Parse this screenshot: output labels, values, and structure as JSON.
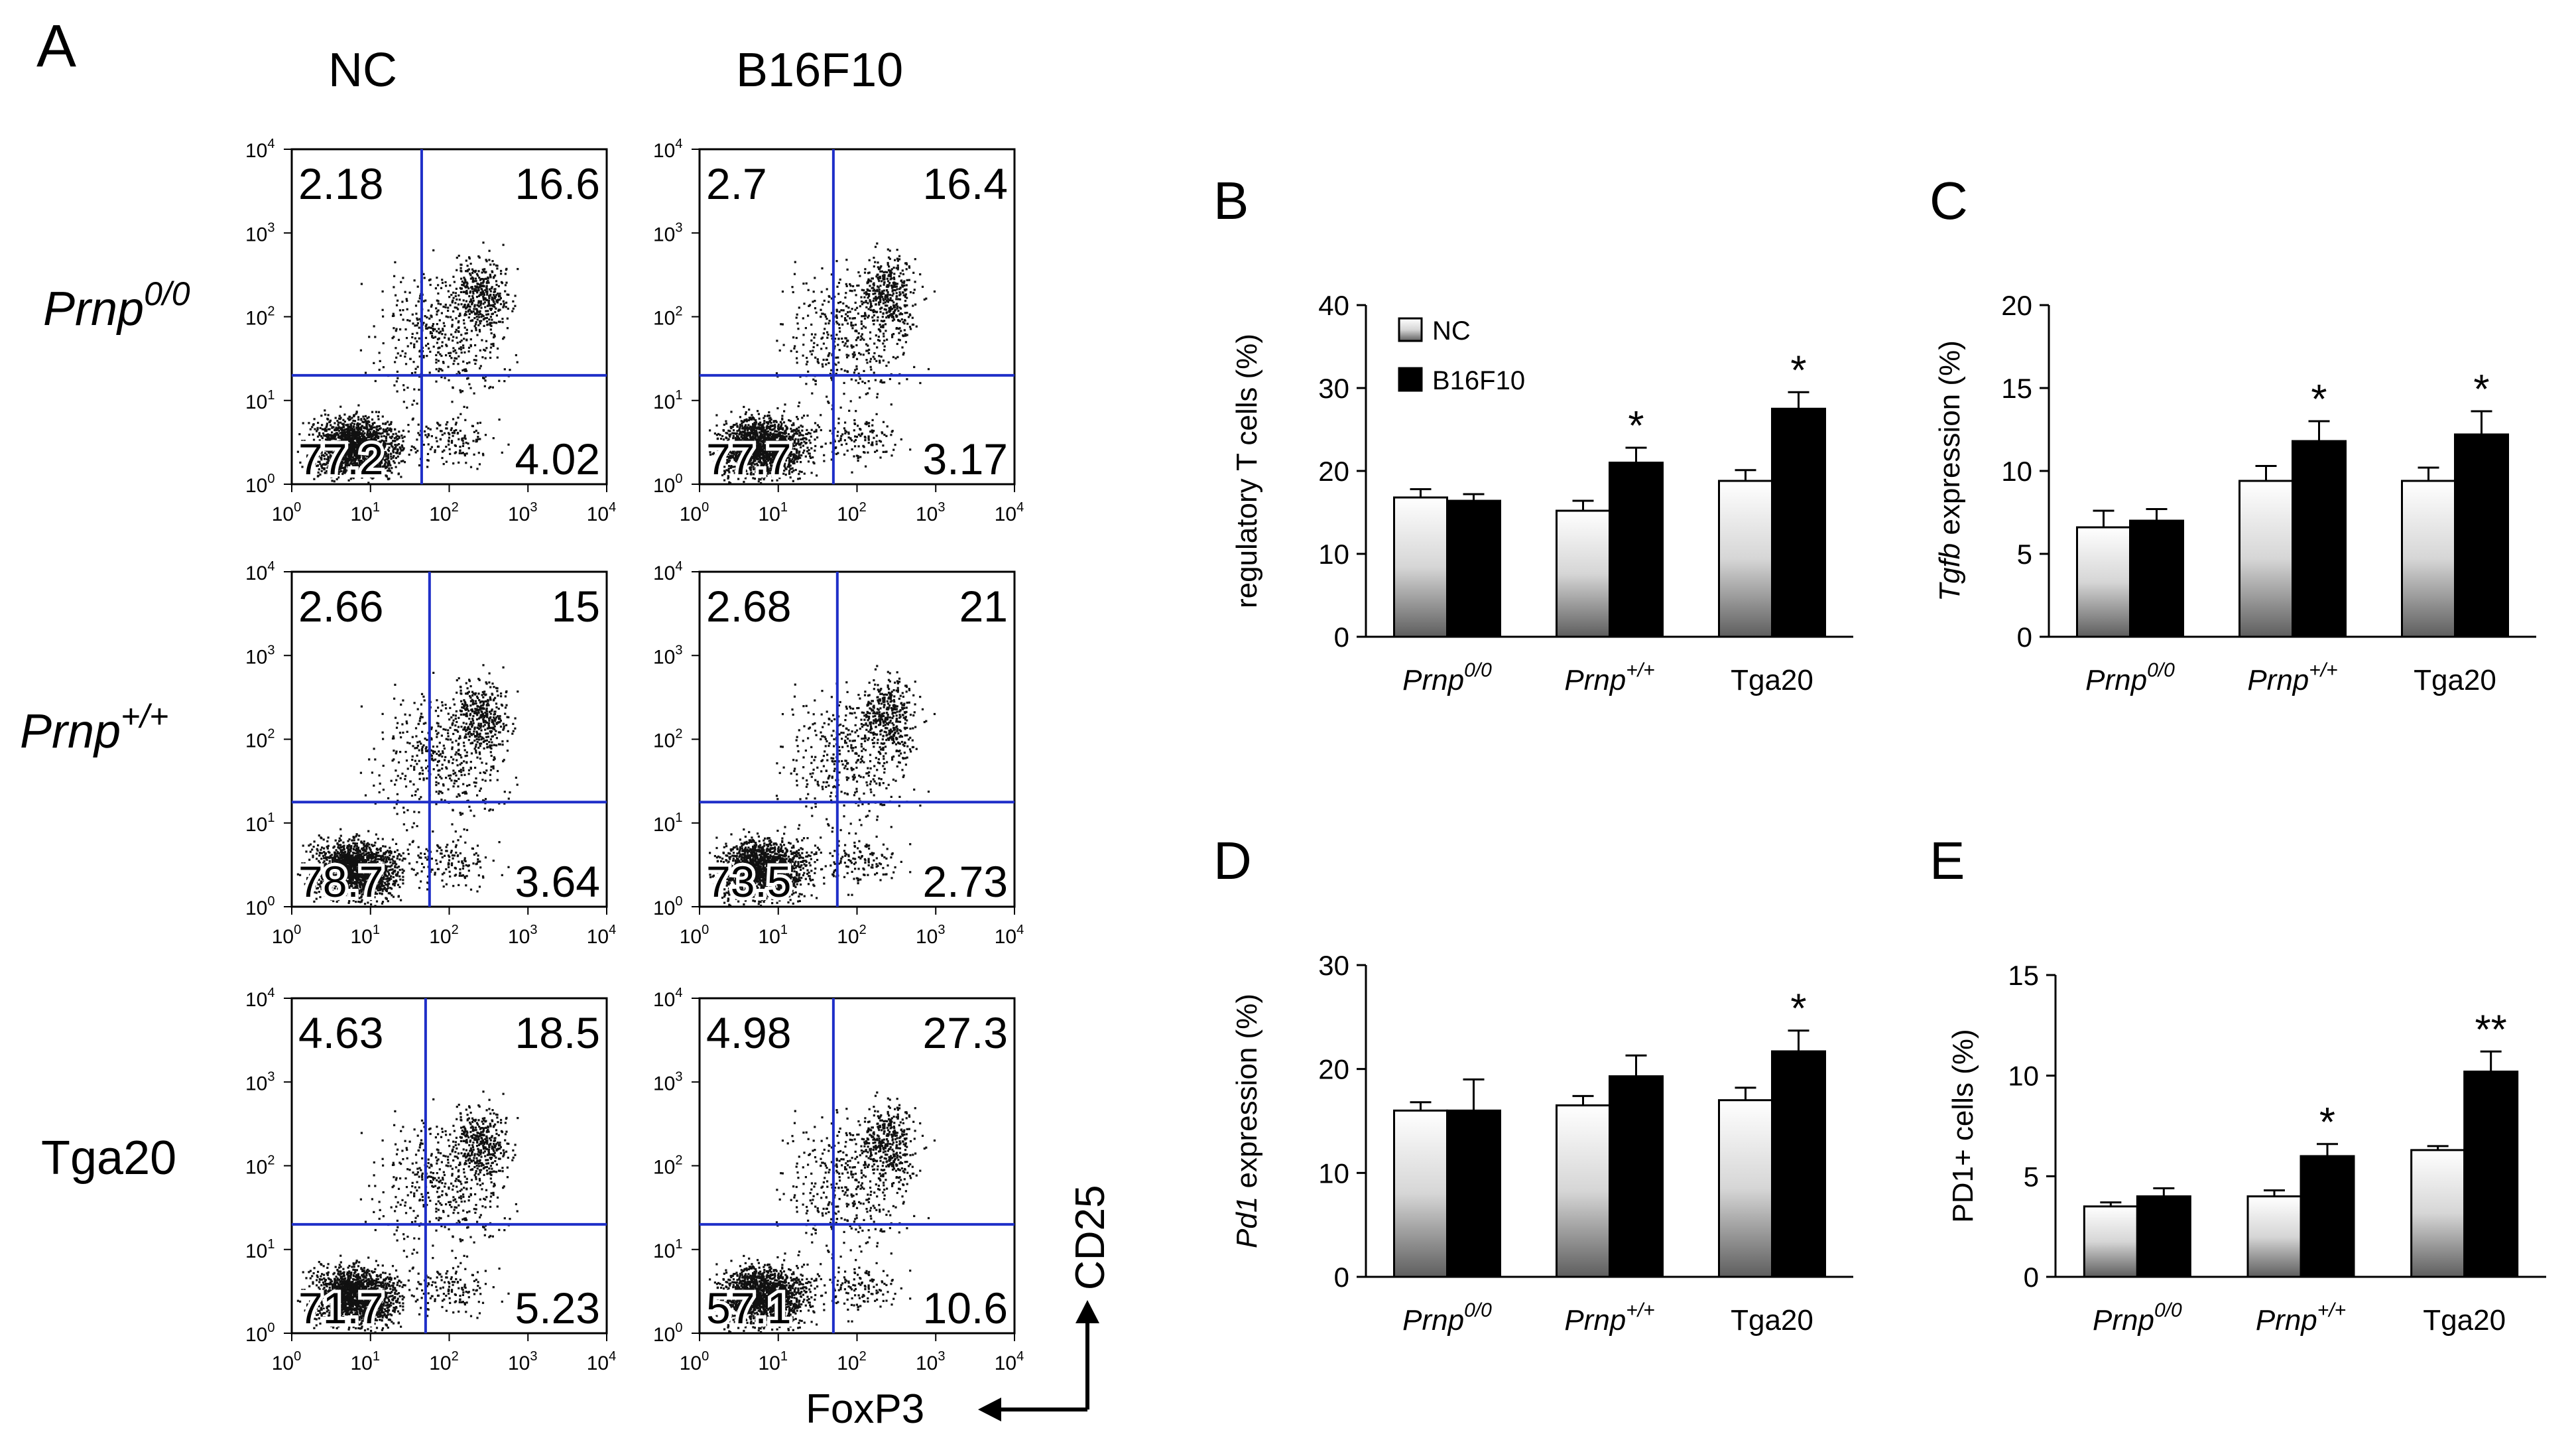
{
  "panel_a": {
    "letter": "A",
    "columns": [
      "NC",
      "B16F10"
    ],
    "rows": [
      {
        "label": "Prnp",
        "sup": "0/0",
        "italic": true
      },
      {
        "label": "Prnp",
        "sup": "+/+",
        "italic": true
      },
      {
        "label": "Tga20",
        "sup": "",
        "italic": false
      }
    ],
    "axis_y_label": "CD25",
    "axis_x_label": "FoxP3",
    "tick_base": "10",
    "tick_exponents": [
      "0",
      "1",
      "2",
      "3",
      "4"
    ],
    "plots": [
      {
        "row": 0,
        "col": 0,
        "ul": "2.18",
        "ur": "16.6",
        "ll": "77.2",
        "lr": "4.02",
        "vline": 1.65,
        "hline": 1.3
      },
      {
        "row": 0,
        "col": 1,
        "ul": "2.7",
        "ur": "16.4",
        "ll": "77.7",
        "lr": "3.17",
        "vline": 1.7,
        "hline": 1.3
      },
      {
        "row": 1,
        "col": 0,
        "ul": "2.66",
        "ur": "15",
        "ll": "78.7",
        "lr": "3.64",
        "vline": 1.75,
        "hline": 1.25
      },
      {
        "row": 1,
        "col": 1,
        "ul": "2.68",
        "ur": "21",
        "ll": "73.5",
        "lr": "2.73",
        "vline": 1.75,
        "hline": 1.25
      },
      {
        "row": 2,
        "col": 0,
        "ul": "4.63",
        "ur": "18.5",
        "ll": "71.7",
        "lr": "5.23",
        "vline": 1.7,
        "hline": 1.3
      },
      {
        "row": 2,
        "col": 1,
        "ul": "4.98",
        "ur": "27.3",
        "ll": "57.1",
        "lr": "10.6",
        "vline": 1.7,
        "hline": 1.3
      }
    ]
  },
  "legend": {
    "nc": "NC",
    "b16": "B16F10"
  },
  "chart_data": [
    {
      "panel": "B",
      "type": "bar",
      "ylabel_pre": "",
      "ylabel_italic": "",
      "ylabel_post": "regulatory T cells (%)",
      "ylim": [
        0,
        40
      ],
      "yticks": [
        "0",
        "10",
        "20",
        "30",
        "40"
      ],
      "categories": [
        {
          "name": "Prnp",
          "sup": "0/0",
          "italic": true
        },
        {
          "name": "Prnp",
          "sup": "+/+",
          "italic": true
        },
        {
          "name": "Tga20",
          "sup": "",
          "italic": false
        }
      ],
      "series": [
        {
          "name": "NC",
          "values": [
            16.8,
            15.2,
            18.8
          ],
          "errors": [
            1.0,
            1.2,
            1.3
          ]
        },
        {
          "name": "B16F10",
          "values": [
            16.4,
            21.0,
            27.5
          ],
          "errors": [
            0.8,
            1.8,
            2.0
          ]
        }
      ],
      "significance": [
        "",
        "*",
        "*"
      ]
    },
    {
      "panel": "C",
      "type": "bar",
      "ylabel_pre": "",
      "ylabel_italic": "Tgfb",
      "ylabel_post": " expression (%)",
      "ylim": [
        0,
        20
      ],
      "yticks": [
        "0",
        "5",
        "10",
        "15",
        "20"
      ],
      "categories": [
        {
          "name": "Prnp",
          "sup": "0/0",
          "italic": true
        },
        {
          "name": "Prnp",
          "sup": "+/+",
          "italic": true
        },
        {
          "name": "Tga20",
          "sup": "",
          "italic": false
        }
      ],
      "series": [
        {
          "name": "NC",
          "values": [
            6.6,
            9.4,
            9.4
          ],
          "errors": [
            1.0,
            0.9,
            0.8
          ]
        },
        {
          "name": "B16F10",
          "values": [
            7.0,
            11.8,
            12.2
          ],
          "errors": [
            0.7,
            1.2,
            1.4
          ]
        }
      ],
      "significance": [
        "",
        "*",
        "*"
      ]
    },
    {
      "panel": "D",
      "type": "bar",
      "ylabel_pre": "",
      "ylabel_italic": "Pd1",
      "ylabel_post": " expression (%)",
      "ylim": [
        0,
        30
      ],
      "yticks": [
        "0",
        "10",
        "20",
        "30"
      ],
      "categories": [
        {
          "name": "Prnp",
          "sup": "0/0",
          "italic": true
        },
        {
          "name": "Prnp",
          "sup": "+/+",
          "italic": true
        },
        {
          "name": "Tga20",
          "sup": "",
          "italic": false
        }
      ],
      "series": [
        {
          "name": "NC",
          "values": [
            16.0,
            16.5,
            17.0
          ],
          "errors": [
            0.8,
            0.9,
            1.2
          ]
        },
        {
          "name": "B16F10",
          "values": [
            16.0,
            19.3,
            21.7
          ],
          "errors": [
            3.0,
            2.0,
            2.0
          ]
        }
      ],
      "significance": [
        "",
        "",
        "*"
      ]
    },
    {
      "panel": "E",
      "type": "bar",
      "ylabel_pre": "",
      "ylabel_italic": "",
      "ylabel_post": "PD1+ cells (%)",
      "ylim": [
        0,
        15
      ],
      "yticks": [
        "0",
        "5",
        "10",
        "15"
      ],
      "categories": [
        {
          "name": "Prnp",
          "sup": "0/0",
          "italic": true
        },
        {
          "name": "Prnp",
          "sup": "+/+",
          "italic": true
        },
        {
          "name": "Tga20",
          "sup": "",
          "italic": false
        }
      ],
      "series": [
        {
          "name": "NC",
          "values": [
            3.5,
            4.0,
            6.3
          ],
          "errors": [
            0.2,
            0.3,
            0.2
          ]
        },
        {
          "name": "B16F10",
          "values": [
            4.0,
            6.0,
            10.2
          ],
          "errors": [
            0.4,
            0.6,
            1.0
          ]
        }
      ],
      "significance": [
        "",
        "*",
        "**"
      ]
    }
  ]
}
